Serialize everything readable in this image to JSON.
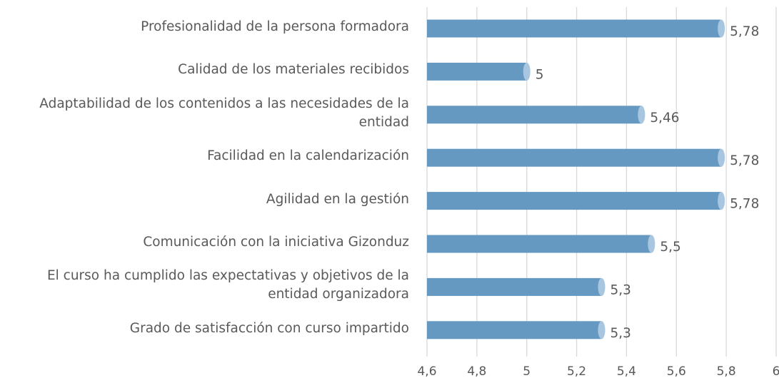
{
  "chart_data": {
    "type": "bar",
    "orientation": "horizontal",
    "categories": [
      "Profesionalidad de la persona formadora",
      "Calidad de los materiales recibidos",
      "Adaptabilidad de los contenidos a las necesidades de la entidad",
      "Facilidad en la calendarización",
      "Agilidad en la gestión",
      "Comunicación con la iniciativa Gizonduz",
      "El curso ha cumplido las expectativas y objetivos de la entidad organizadora",
      "Grado de satisfacción con curso impartido"
    ],
    "values": [
      5.78,
      5,
      5.46,
      5.78,
      5.78,
      5.5,
      5.3,
      5.3
    ],
    "value_labels": [
      "5,78",
      "5",
      "5,46",
      "5,78",
      "5,78",
      "5,5",
      "5,3",
      "5,3"
    ],
    "color": "#6699c2",
    "cap_color": "#a8c6df",
    "xlim": [
      4.6,
      6
    ],
    "xticks": [
      {
        "value": 4.6,
        "label": "4,6"
      },
      {
        "value": 4.8,
        "label": "4,8"
      },
      5,
      {
        "value": 5.2,
        "label": "5,2"
      },
      {
        "value": 5.4,
        "label": "5,4"
      },
      {
        "value": 5.6,
        "label": "5,6"
      },
      {
        "value": 5.8,
        "label": "5,8"
      },
      6
    ],
    "grid": true
  }
}
